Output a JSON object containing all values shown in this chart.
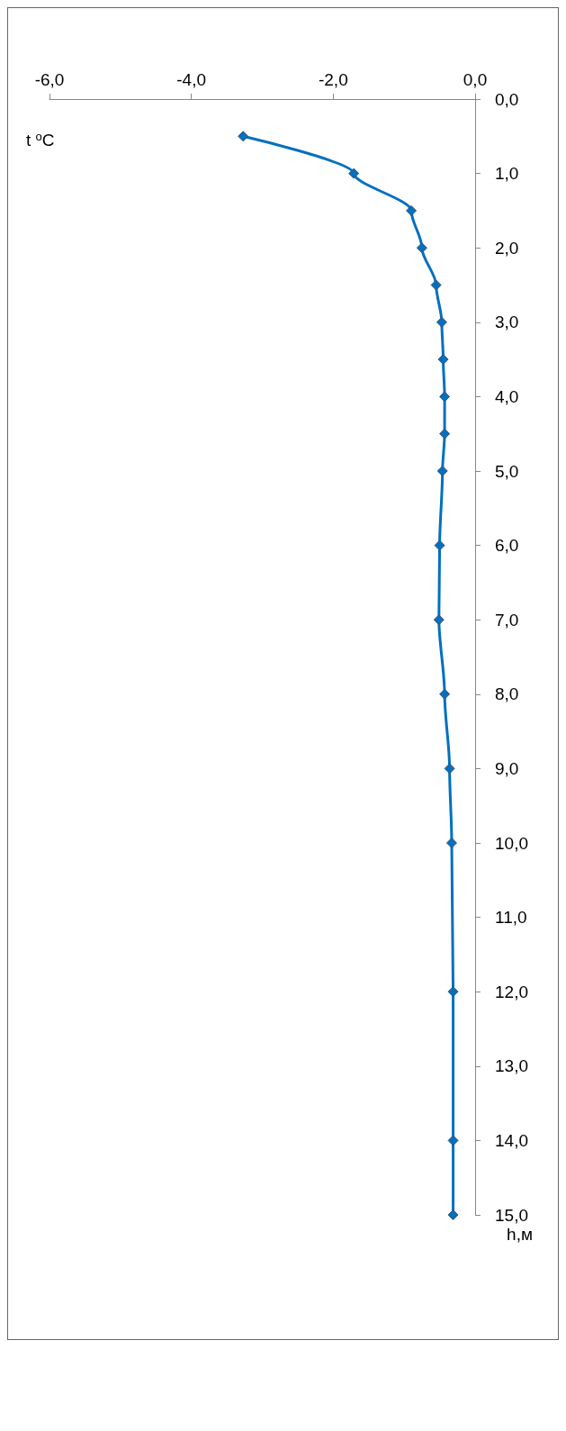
{
  "chart_data": {
    "type": "line",
    "xlabel": "t $^{o}$C",
    "ylabel": "h,м",
    "orientation": "horizontal",
    "marker": "diamond",
    "grid": false,
    "x": [
      0.5,
      1,
      1.5,
      2,
      2.5,
      3,
      3.5,
      4,
      4.5,
      5,
      6,
      7,
      8,
      9,
      10,
      12,
      14,
      15
    ],
    "series": [
      {
        "color": "#0070c0",
        "values": [
          -3.27,
          -1.71,
          -0.9,
          -0.75,
          -0.55,
          -0.47,
          -0.45,
          -0.43,
          -0.43,
          -0.46,
          -0.5,
          -0.51,
          -0.43,
          -0.36,
          -0.33,
          -0.31,
          -0.31,
          -0.31
        ]
      }
    ],
    "xlim": [
      -6,
      0
    ],
    "xticks": [
      {
        "value": -6,
        "label": "-6,0"
      },
      {
        "value": -4,
        "label": "-4,0"
      },
      {
        "value": -2,
        "label": "-2,0"
      },
      {
        "value": 0,
        "label": "0,0"
      }
    ],
    "ylim": [
      15,
      0
    ],
    "yticks": [
      {
        "value": 0,
        "label": "0,0"
      },
      {
        "value": 1,
        "label": "1,0"
      },
      {
        "value": 2,
        "label": "2,0"
      },
      {
        "value": 3,
        "label": "3,0"
      },
      {
        "value": 4,
        "label": "4,0"
      },
      {
        "value": 5,
        "label": "5,0"
      },
      {
        "value": 6,
        "label": "6,0"
      },
      {
        "value": 7,
        "label": "7,0"
      },
      {
        "value": 8,
        "label": "8,0"
      },
      {
        "value": 9,
        "label": "9,0"
      },
      {
        "value": 10,
        "label": "10,0"
      },
      {
        "value": 11,
        "label": "11,0"
      },
      {
        "value": 12,
        "label": "12,0"
      },
      {
        "value": 13,
        "label": "13,0"
      },
      {
        "value": 14,
        "label": "14,0"
      },
      {
        "value": 15,
        "label": "15,0"
      }
    ]
  }
}
